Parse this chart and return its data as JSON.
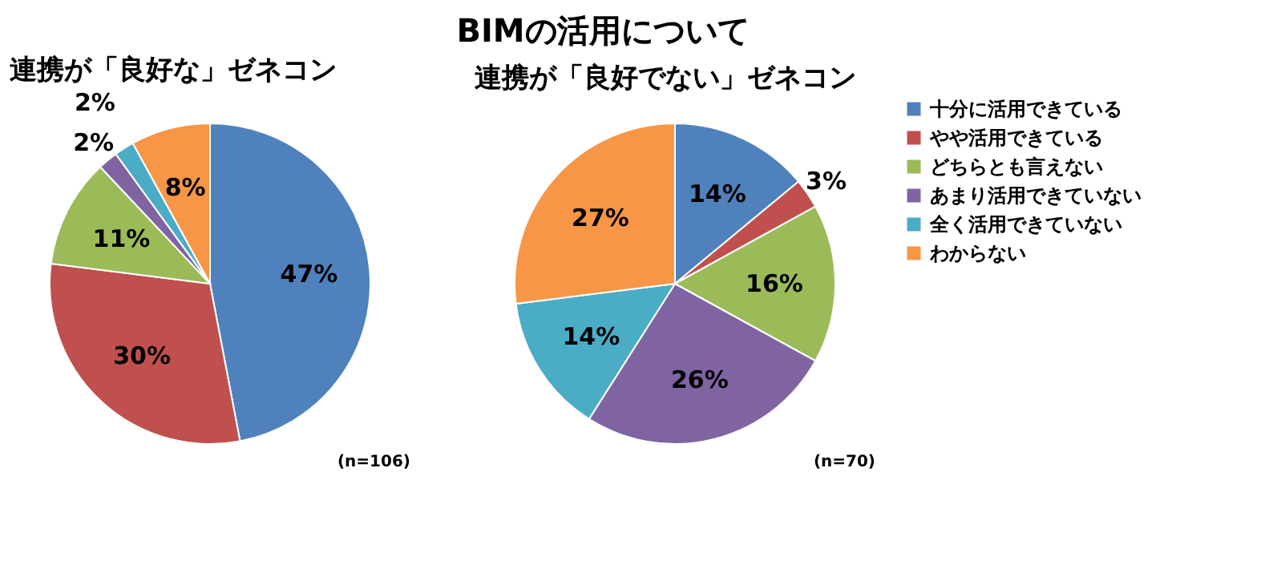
{
  "chart_data": [
    {
      "type": "other",
      "title": "BIMの活用について"
    },
    {
      "type": "pie",
      "title": "連携が「良好な」ゼネコン",
      "categories": [
        null,
        null,
        null,
        null,
        null,
        null
      ],
      "values": [
        47,
        30,
        11,
        2,
        2,
        8
      ],
      "value_labels": [
        "47%",
        "30%",
        "11%",
        "2%",
        "2%",
        "8%"
      ],
      "colors": [
        "#4f81bd",
        "#c0504d",
        "#9bbb59",
        "#8064a2",
        "#4bacc6",
        "#f79646"
      ],
      "legend": false,
      "annotations": [
        "(n=106)"
      ]
    },
    {
      "type": "pie",
      "title": "連携が「良好でない」ゼネコン",
      "categories": [
        "十分に活用できている",
        "やや活用できている",
        "どちらとも言えない",
        "あまり活用できていない",
        "全く活用できていない",
        "わからない"
      ],
      "values": [
        14,
        3,
        16,
        26,
        14,
        27
      ],
      "value_labels": [
        "14%",
        "3%",
        "16%",
        "26%",
        "14%",
        "27%"
      ],
      "colors": [
        "#4f81bd",
        "#c0504d",
        "#9bbb59",
        "#8064a2",
        "#4bacc6",
        "#f79646"
      ],
      "legend": "right",
      "annotations": [
        "(n=70)"
      ]
    }
  ]
}
